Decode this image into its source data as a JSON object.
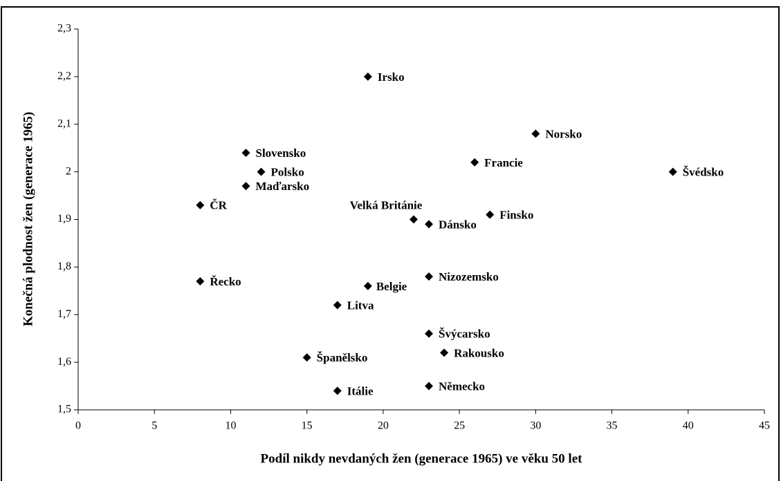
{
  "chart_data": {
    "type": "scatter",
    "x_label": "Podíl nikdy nevdaných žen (generace 1965) ve věku 50 let",
    "y_label": "Konečná plodnost žen (generace 1965)",
    "series": [
      {
        "color": "#000000",
        "labels": [
          "ČR",
          "Řecko",
          "Slovensko",
          "Maďarsko",
          "Polsko",
          "Španělsko",
          "Itálie",
          "Litva",
          "Irsko",
          "Belgie",
          "Velká Británie",
          "Dánsko",
          "Nizozemsko",
          "Švýcarsko",
          "Německo",
          "Rakousko",
          "Francie",
          "Finsko",
          "Norsko",
          "Švédsko"
        ],
        "x": [
          8,
          8,
          11,
          11,
          12,
          15,
          17,
          17,
          19,
          19,
          22,
          23,
          23,
          23,
          23,
          24,
          26,
          27,
          30,
          39
        ],
        "values": [
          1.93,
          1.77,
          2.04,
          1.97,
          2.0,
          1.61,
          1.54,
          1.72,
          2.2,
          1.76,
          1.9,
          1.89,
          1.78,
          1.66,
          1.55,
          1.62,
          2.02,
          1.91,
          2.08,
          2.0
        ]
      }
    ],
    "xlim": [
      0,
      45
    ],
    "xticks": [
      0,
      5,
      10,
      15,
      20,
      25,
      30,
      35,
      40,
      45
    ],
    "ylim": [
      1.5,
      2.3
    ],
    "yticks": [
      {
        "value": 1.5,
        "label": "1,5"
      },
      {
        "value": 1.6,
        "label": "1,6"
      },
      {
        "value": 1.7,
        "label": "1,7"
      },
      {
        "value": 1.8,
        "label": "1,8"
      },
      {
        "value": 1.9,
        "label": "1,9"
      },
      2,
      {
        "value": 2.1,
        "label": "2,1"
      },
      {
        "value": 2.2,
        "label": "2,2"
      },
      {
        "value": 2.3,
        "label": "2,3"
      }
    ],
    "grid": false
  }
}
